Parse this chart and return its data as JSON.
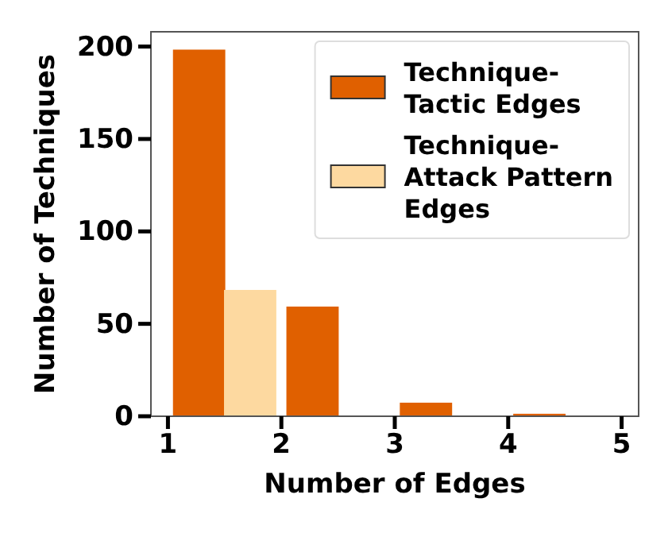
{
  "chart_data": {
    "type": "bar",
    "xlabel": "Number of Edges",
    "ylabel": "Number of Techniques",
    "series": [
      {
        "name": "Technique-\nTactic Edges",
        "color": "#e06000",
        "x": [
          1.275,
          2.275,
          3.275,
          4.275
        ],
        "values": [
          198,
          59,
          7,
          1
        ]
      },
      {
        "name": "Technique-\nAttack Pattern\nEdges",
        "color": "#fdd9a0",
        "x": [
          1.725,
          2.725,
          3.725,
          4.725
        ],
        "values": [
          68,
          0,
          0,
          0
        ]
      }
    ],
    "xlim": [
      0.85,
      5.15
    ],
    "xticks": [
      1,
      2,
      3,
      4,
      5
    ],
    "ylim": [
      0,
      208
    ],
    "yticks": [
      0,
      50,
      100,
      150,
      200
    ],
    "grid": false,
    "legend": "top right"
  }
}
